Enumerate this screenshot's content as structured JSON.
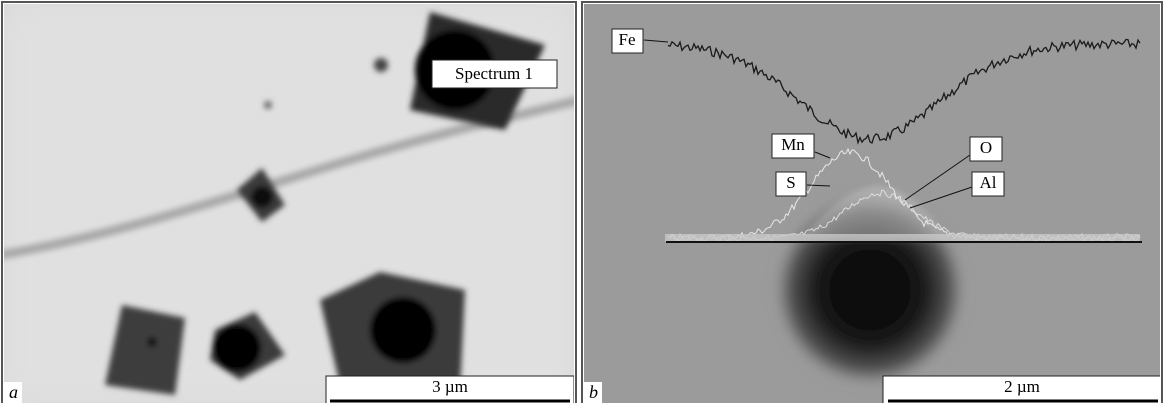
{
  "panels": [
    {
      "label": "a",
      "scale_bar": "3 µm",
      "annotations": [
        "Spectrum 1"
      ]
    },
    {
      "label": "b",
      "scale_bar": "2 µm",
      "annotations": [
        "Fe",
        "Mn",
        "S",
        "O",
        "Al"
      ]
    }
  ]
}
